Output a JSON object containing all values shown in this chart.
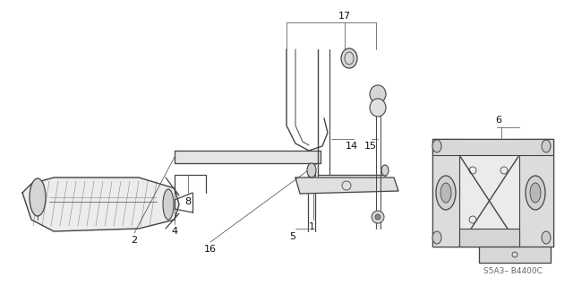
{
  "bg_color": "#ffffff",
  "line_color": "#444444",
  "label_color": "#111111",
  "watermark": "S5A3– B4400C",
  "figsize": [
    6.4,
    3.19
  ],
  "dpi": 100
}
